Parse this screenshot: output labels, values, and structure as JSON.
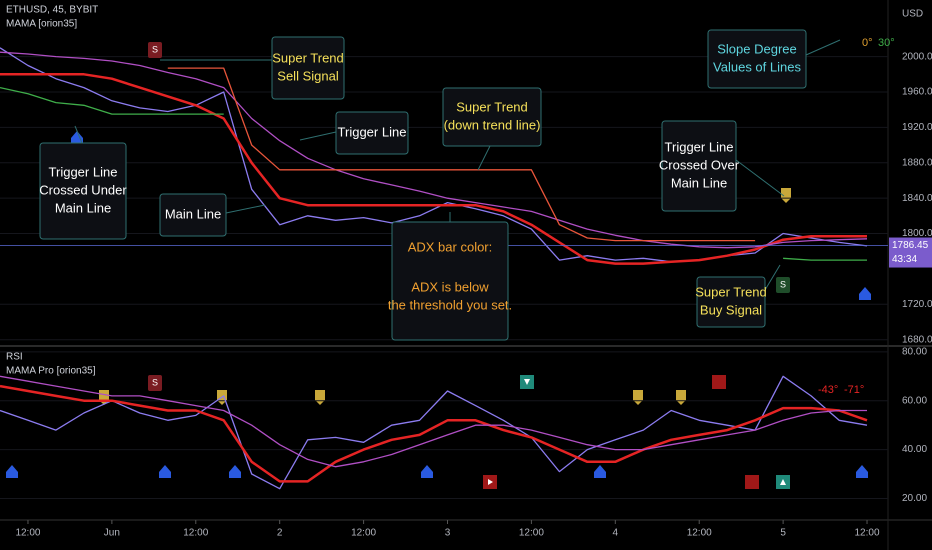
{
  "chart_data": [
    {
      "type": "line",
      "title": "ETHUSD, 45, BYBIT",
      "subtitle": "MAMA [orion35]",
      "y_label": "USD",
      "x": [
        8,
        12,
        16,
        20,
        24,
        28,
        32,
        36,
        40,
        44,
        48,
        52,
        56,
        60,
        64,
        68,
        72,
        76,
        80,
        84,
        88,
        92,
        96,
        100,
        104,
        108,
        112,
        116,
        120,
        124,
        128,
        132
      ],
      "series": [
        {
          "color": "#8c7cf0",
          "values": [
            2010,
            1990,
            1975,
            1965,
            1950,
            1942,
            1938,
            1945,
            1960,
            1850,
            1810,
            1820,
            1815,
            1818,
            1812,
            1820,
            1835,
            1828,
            1820,
            1805,
            1770,
            1775,
            1770,
            1772,
            1768,
            1770,
            1775,
            1778,
            1800,
            1795,
            1790,
            1786
          ]
        },
        {
          "color": "#e52424",
          "values": [
            1980,
            1980,
            1980,
            1980,
            1975,
            1965,
            1955,
            1945,
            1930,
            1880,
            1840,
            1832,
            1832,
            1832,
            1832,
            1832,
            1832,
            1832,
            1825,
            1810,
            1790,
            1770,
            1766,
            1766,
            1768,
            1770,
            1775,
            1782,
            1793,
            1797,
            1797,
            1797
          ]
        },
        {
          "color": "#b04fc4",
          "values": [
            2005,
            2003,
            2000,
            1998,
            1995,
            1990,
            1982,
            1975,
            1965,
            1930,
            1905,
            1885,
            1872,
            1862,
            1855,
            1848,
            1840,
            1835,
            1830,
            1825,
            1815,
            1805,
            1798,
            1792,
            1788,
            1785,
            1784,
            1785,
            1790,
            1792,
            1793,
            1794
          ]
        },
        {
          "color": "#e8553a",
          "values": [
            null,
            null,
            null,
            null,
            null,
            null,
            1987,
            1987,
            1987,
            1900,
            1872,
            1872,
            1872,
            1872,
            1872,
            1872,
            1872,
            1872,
            1872,
            1872,
            1810,
            1795,
            1792,
            1792,
            1792,
            1792,
            1792,
            1792,
            null,
            null,
            null,
            null
          ]
        },
        {
          "color": "#3fae4a",
          "values": [
            1965,
            1958,
            1948,
            1945,
            1935,
            1935,
            1935,
            1935,
            1935,
            null,
            null,
            null,
            null,
            null,
            null,
            null,
            null,
            null,
            null,
            null,
            null,
            null,
            null,
            null,
            null,
            null,
            null,
            null,
            1772,
            1770,
            1770,
            1770
          ]
        }
      ],
      "last_price": 1786.45,
      "countdown": "43:34",
      "xlim": [
        8,
        135
      ],
      "ylim": [
        1674,
        2064
      ],
      "yticks": [
        {
          "value": 2000,
          "label": "2000.00"
        },
        {
          "value": 1960,
          "label": "1960.00"
        },
        {
          "value": 1920,
          "label": "1920.00"
        },
        {
          "value": 1880,
          "label": "1880.00"
        },
        {
          "value": 1840,
          "label": "1840.00"
        },
        {
          "value": 1800,
          "label": "1800.00"
        },
        {
          "value": 1720,
          "label": "1720.00"
        },
        {
          "value": 1680,
          "label": "1680.00"
        }
      ],
      "slope_labels": [
        {
          "label": "0°",
          "color": "#e0a030"
        },
        {
          "label": "30°",
          "color": "#3fae4a"
        }
      ],
      "signals": [
        "S",
        "S"
      ],
      "annotations": [
        {
          "color": "#f5e05a",
          "lines": [
            "Super Trend",
            "Sell Signal"
          ]
        },
        {
          "color": "#ffffff",
          "lines": [
            "Trigger Line"
          ]
        },
        {
          "color": "#f5e05a",
          "lines": [
            "Super Trend",
            "(down trend line)"
          ]
        },
        {
          "color": "#5fd6e0",
          "lines": [
            "Slope Degree",
            "Values of Lines"
          ]
        },
        {
          "color": "#ffffff",
          "lines": [
            "Trigger Line",
            "Crossed Under",
            "Main Line"
          ]
        },
        {
          "color": "#ffffff",
          "lines": [
            "Main Line"
          ]
        },
        {
          "color": "#f0a030",
          "lines": [
            "ADX bar color:",
            "ADX is below",
            "the threshold you set."
          ]
        },
        {
          "color": "#ffffff",
          "lines": [
            "Trigger Line",
            "Crossed Over",
            "Main Line"
          ]
        },
        {
          "color": "#f5e05a",
          "lines": [
            "Super Trend",
            "Buy Signal"
          ]
        }
      ]
    },
    {
      "type": "line",
      "title": "RSI",
      "subtitle": "MAMA Pro [orion35]",
      "x": [
        8,
        12,
        16,
        20,
        24,
        28,
        32,
        36,
        40,
        44,
        48,
        52,
        56,
        60,
        64,
        68,
        72,
        76,
        80,
        84,
        88,
        92,
        96,
        100,
        104,
        108,
        112,
        116,
        120,
        124,
        128,
        132
      ],
      "series": [
        {
          "color": "#8c7cf0",
          "values": [
            56,
            52,
            48,
            55,
            60,
            55,
            52,
            54,
            62,
            30,
            24,
            44,
            45,
            43,
            50,
            52,
            64,
            58,
            52,
            45,
            31,
            40,
            44,
            48,
            56,
            52,
            50,
            48,
            70,
            62,
            52,
            50
          ]
        },
        {
          "color": "#e52424",
          "values": [
            66,
            64,
            62,
            60,
            60,
            58,
            56,
            56,
            52,
            35,
            27,
            27,
            35,
            40,
            44,
            46,
            52,
            52,
            48,
            45,
            40,
            35,
            35,
            40,
            44,
            46,
            48,
            52,
            57,
            57,
            56,
            52
          ]
        },
        {
          "color": "#b04fc4",
          "values": [
            70,
            68,
            66,
            64,
            62,
            62,
            60,
            58,
            56,
            50,
            42,
            36,
            33,
            35,
            38,
            42,
            46,
            50,
            50,
            48,
            45,
            42,
            40,
            40,
            42,
            44,
            46,
            48,
            52,
            55,
            56,
            56
          ]
        }
      ],
      "xlim": [
        8,
        135
      ],
      "ylim": [
        12,
        82
      ],
      "yticks": [
        {
          "value": 80,
          "label": "80.00"
        },
        {
          "value": 60,
          "label": "60.00"
        },
        {
          "value": 40,
          "label": "40.00"
        },
        {
          "value": 20,
          "label": "20.00"
        }
      ],
      "xticks": [
        {
          "value": 12,
          "label": "12:00"
        },
        {
          "value": 24,
          "label": "Jun"
        },
        {
          "value": 36,
          "label": "12:00"
        },
        {
          "value": 48,
          "label": "2"
        },
        {
          "value": 60,
          "label": "12:00"
        },
        {
          "value": 72,
          "label": "3"
        },
        {
          "value": 84,
          "label": "12:00"
        },
        {
          "value": 96,
          "label": "4"
        },
        {
          "value": 108,
          "label": "12:00"
        },
        {
          "value": 120,
          "label": "5"
        },
        {
          "value": 132,
          "label": "12:00"
        }
      ],
      "slope_labels": [
        {
          "label": "-43°",
          "color": "#e52424"
        },
        {
          "label": "-71°",
          "color": "#e52424"
        }
      ],
      "signals": [
        "S"
      ]
    }
  ]
}
